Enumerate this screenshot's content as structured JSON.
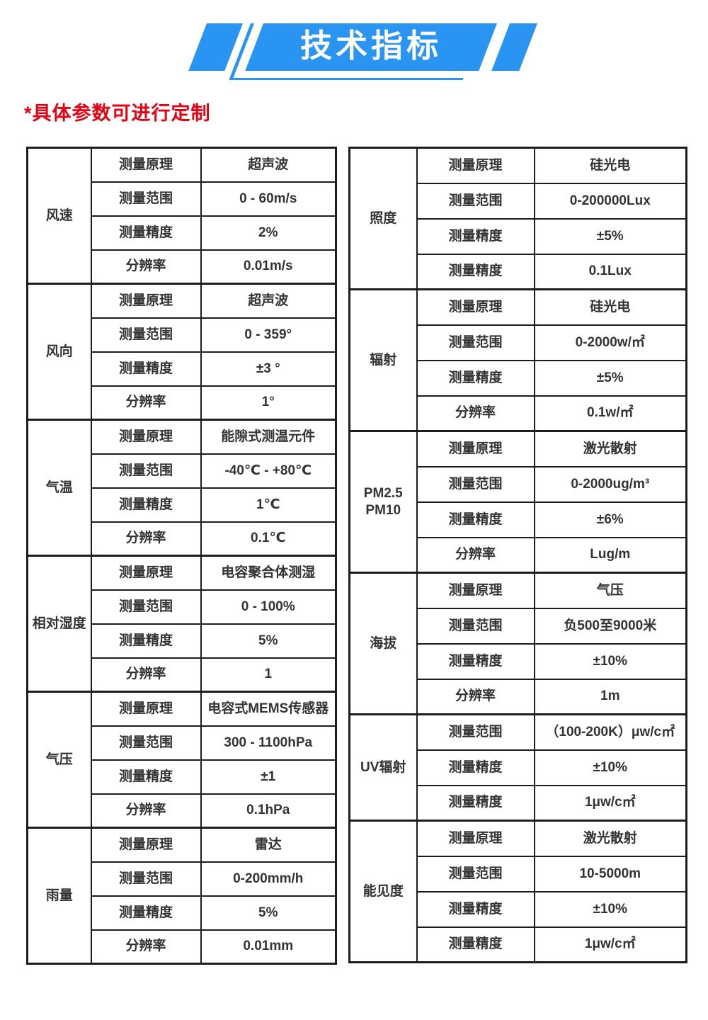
{
  "header": {
    "title": "技术指标"
  },
  "note": "*具体参数可进行定制",
  "colors": {
    "banner_blue": "#2994f2",
    "note_red": "#e60012",
    "table_border": "#1c1c1c",
    "text": "#333333"
  },
  "left_table": {
    "groups": [
      {
        "category": "风速",
        "rows": [
          {
            "label": "测量原理",
            "value": "超声波"
          },
          {
            "label": "测量范围",
            "value": "0 - 60m/s"
          },
          {
            "label": "测量精度",
            "value": "2%"
          },
          {
            "label": "分辨率",
            "value": "0.01m/s"
          }
        ]
      },
      {
        "category": "风向",
        "rows": [
          {
            "label": "测量原理",
            "value": "超声波"
          },
          {
            "label": "测量范围",
            "value": "0  - 359°"
          },
          {
            "label": "测量精度",
            "value": "±3 °"
          },
          {
            "label": "分辨率",
            "value": "1°"
          }
        ]
      },
      {
        "category": "气温",
        "rows": [
          {
            "label": "测量原理",
            "value": "能隙式测温元件"
          },
          {
            "label": "测量范围",
            "value": "-40℃  -  +80℃"
          },
          {
            "label": "测量精度",
            "value": "1℃"
          },
          {
            "label": "分辨率",
            "value": "0.1℃"
          }
        ]
      },
      {
        "category": "相对湿度",
        "rows": [
          {
            "label": "测量原理",
            "value": "电容聚合体测湿"
          },
          {
            "label": "测量范围",
            "value": "0 - 100%"
          },
          {
            "label": "测量精度",
            "value": "5%"
          },
          {
            "label": "分辨率",
            "value": "1"
          }
        ]
      },
      {
        "category": "气压",
        "rows": [
          {
            "label": "测量原理",
            "value": "电容式MEMS传感器"
          },
          {
            "label": "测量范围",
            "value": "300  -  1100hPa"
          },
          {
            "label": "测量精度",
            "value": "±1"
          },
          {
            "label": "分辨率",
            "value": "0.1hPa"
          }
        ]
      },
      {
        "category": "雨量",
        "rows": [
          {
            "label": "测量原理",
            "value": "雷达"
          },
          {
            "label": "测量范围",
            "value": "0-200mm/h"
          },
          {
            "label": "测量精度",
            "value": "5%"
          },
          {
            "label": "分辨率",
            "value": "0.01mm"
          }
        ]
      }
    ]
  },
  "right_table": {
    "groups": [
      {
        "category": "照度",
        "rows": [
          {
            "label": "测量原理",
            "value": "硅光电"
          },
          {
            "label": "测量范围",
            "value": "0-200000Lux"
          },
          {
            "label": "测量精度",
            "value": "±5%"
          },
          {
            "label": "测量精度",
            "value": "0.1Lux"
          }
        ]
      },
      {
        "category": "辐射",
        "rows": [
          {
            "label": "测量原理",
            "value": "硅光电"
          },
          {
            "label": "测量范围",
            "value": "0-2000w/㎡"
          },
          {
            "label": "测量精度",
            "value": "±5%"
          },
          {
            "label": "分辨率",
            "value": "0.1w/㎡"
          }
        ]
      },
      {
        "category": "PM2.5 PM10",
        "rows": [
          {
            "label": "测量原理",
            "value": "激光散射"
          },
          {
            "label": "测量范围",
            "value": "0-2000ug/m³"
          },
          {
            "label": "测量精度",
            "value": "±6%"
          },
          {
            "label": "分辨率",
            "value": "Lug/m"
          }
        ]
      },
      {
        "category": "海拔",
        "rows": [
          {
            "label": "测量原理",
            "value": "气压"
          },
          {
            "label": "测量范围",
            "value": "负500至9000米"
          },
          {
            "label": "测量精度",
            "value": "±10%"
          },
          {
            "label": "分辨率",
            "value": "1m"
          }
        ]
      },
      {
        "category": "UV辐射",
        "rows": [
          {
            "label": "测量范围",
            "value": "（100-200K）μw/c㎡"
          },
          {
            "label": "测量精度",
            "value": "±10%"
          },
          {
            "label": "测量精度",
            "value": "1μw/c㎡"
          }
        ]
      },
      {
        "category": "能见度",
        "rows": [
          {
            "label": "测量原理",
            "value": "激光散射"
          },
          {
            "label": "测量范围",
            "value": "10-5000m"
          },
          {
            "label": "测量精度",
            "value": "±10%"
          },
          {
            "label": "测量精度",
            "value": "1μw/c㎡"
          }
        ]
      }
    ]
  }
}
